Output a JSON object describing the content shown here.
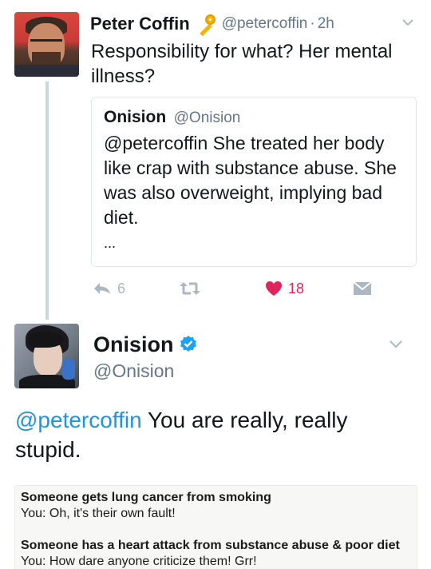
{
  "tweet1": {
    "author_name": "Peter Coffin",
    "author_handle": "@petercoffin",
    "separator": "·",
    "time": "2h",
    "text": "Responsibility for what? Her mental illness?",
    "badge_icon": "key-icon",
    "quote": {
      "author_name": "Onision",
      "author_handle": "@Onision",
      "text": "@petercoffin She treated her body like crap with substance abuse. She was also overweight, implying bad diet.",
      "more": "..."
    },
    "actions": {
      "reply_count": "6",
      "retweet_count": "",
      "like_count": "18"
    }
  },
  "tweet2": {
    "author_name": "Onision",
    "author_handle": "@Onision",
    "mention": "@petercoffin",
    "text": " You are really, really stupid.",
    "card": {
      "line1": "Someone gets lung cancer from smoking",
      "line2": "You: Oh, it's their own fault!",
      "line3": "Someone has a heart attack from substance abuse & poor diet",
      "line4": "You: How dare anyone criticize them! Grr!"
    }
  },
  "colors": {
    "text": "#14171a",
    "secondary": "#657786",
    "link": "#1b95e0",
    "like": "#e0245e",
    "icon_gray": "#aab8c2",
    "verified": "#1da1f2"
  }
}
